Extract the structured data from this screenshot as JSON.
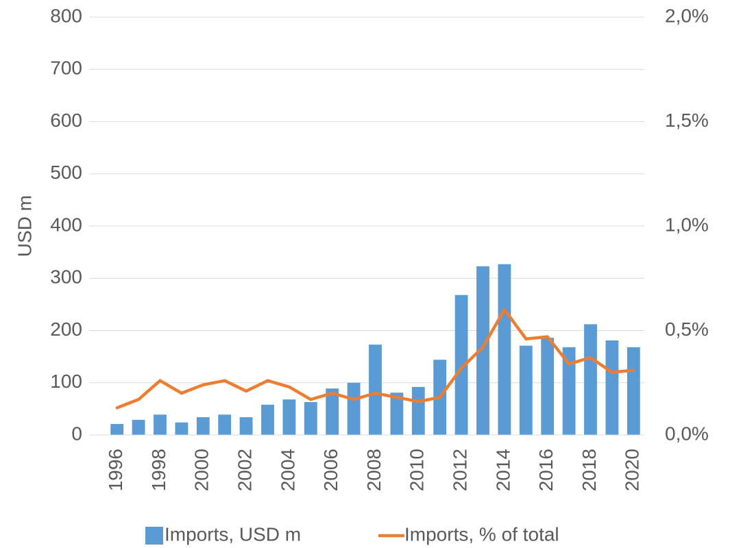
{
  "chart_data": {
    "type": "bar_line",
    "y_label": "USD m",
    "categories": [
      "1996",
      null,
      "1998",
      null,
      "2000",
      null,
      "2002",
      null,
      "2004",
      null,
      "2006",
      null,
      "2008",
      null,
      "2010",
      null,
      "2012",
      null,
      "2014",
      null,
      "2016",
      null,
      "2018",
      null,
      "2020"
    ],
    "series": [
      {
        "name": "Imports, USD m",
        "color": "#5b9bd5",
        "type": "bar",
        "values": [
          21,
          29,
          39,
          24,
          34,
          39,
          34,
          58,
          68,
          63,
          89,
          100,
          173,
          81,
          92,
          144,
          268,
          323,
          327,
          171,
          186,
          168,
          212,
          181,
          168
        ]
      },
      {
        "name": "Imports, % of total",
        "color": "#ed7d31",
        "type": "line",
        "axis": "y2",
        "values": [
          0.13,
          0.17,
          0.26,
          0.2,
          0.24,
          0.26,
          0.21,
          0.26,
          0.23,
          0.17,
          0.2,
          0.17,
          0.2,
          0.18,
          0.16,
          0.18,
          0.32,
          0.42,
          0.6,
          0.46,
          0.47,
          0.34,
          0.37,
          0.3,
          0.31
        ]
      }
    ],
    "ylim": [
      0,
      800
    ],
    "yticks": [
      0,
      100,
      200,
      300,
      400,
      500,
      600,
      700,
      800
    ],
    "y2lim": [
      0,
      2
    ],
    "y2ticks": [
      {
        "value": 0,
        "label": "0,0%"
      },
      {
        "value": 0.5,
        "label": "0,5%"
      },
      {
        "value": 1,
        "label": "1,0%"
      },
      {
        "value": 1.5,
        "label": "1,5%"
      },
      {
        "value": 2,
        "label": "2,0%"
      }
    ],
    "grid": true,
    "legend": "bottom"
  }
}
